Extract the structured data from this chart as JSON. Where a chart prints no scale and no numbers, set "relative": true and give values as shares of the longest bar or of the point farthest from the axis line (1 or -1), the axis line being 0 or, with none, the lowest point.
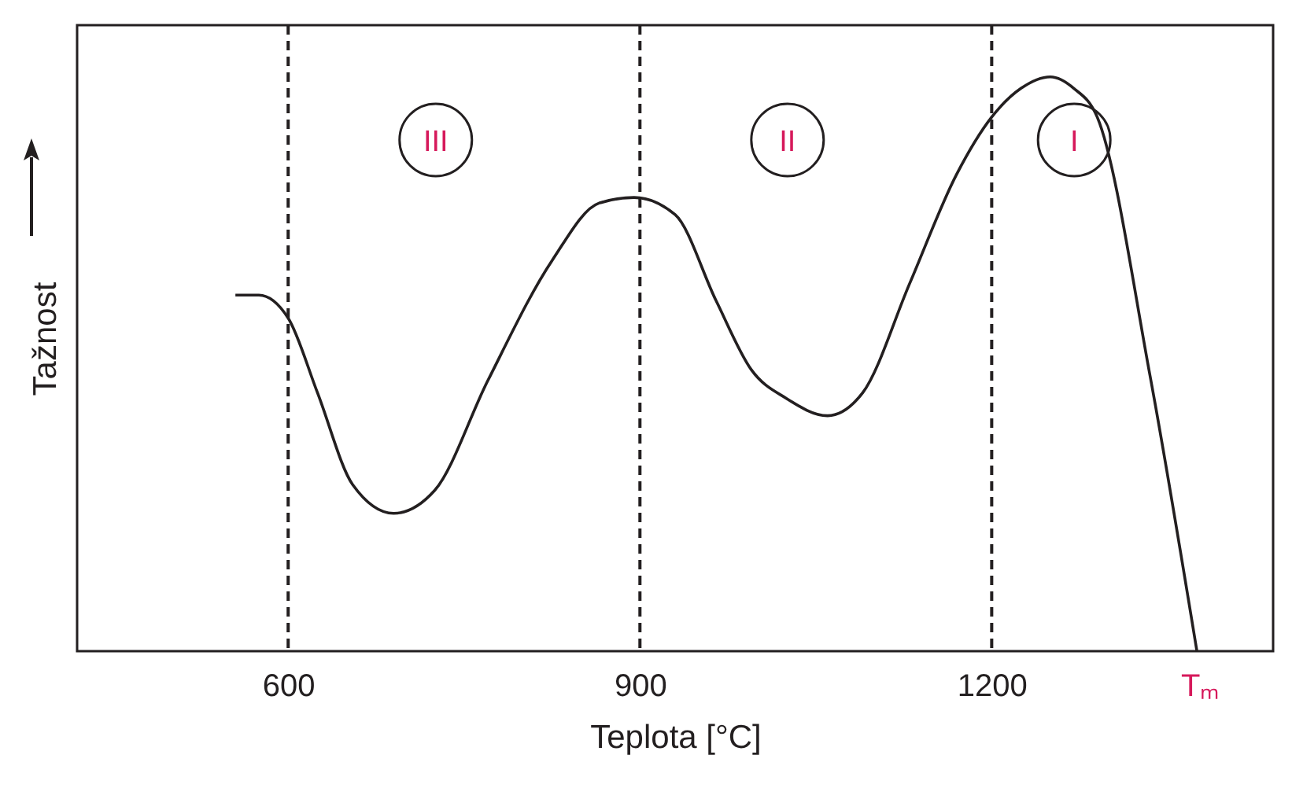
{
  "chart_data": {
    "type": "line",
    "xlabel": "Teplota [°C]",
    "ylabel": "Tažnost",
    "relative": true,
    "x": [
      555,
      575,
      600,
      625,
      655,
      690,
      725,
      770,
      825,
      865,
      895,
      930,
      965,
      995,
      1025,
      1060,
      1090,
      1130,
      1170,
      1200,
      1225,
      1250,
      1270,
      1290,
      1335,
      1375
    ],
    "series": [
      {
        "color": "#231f20",
        "values": [
          0.62,
          0.62,
          0.58,
          0.45,
          0.29,
          0.24,
          0.28,
          0.47,
          0.68,
          0.78,
          0.79,
          0.76,
          0.61,
          0.49,
          0.44,
          0.41,
          0.45,
          0.64,
          0.83,
          0.93,
          0.98,
          1,
          0.98,
          0.93,
          0.48,
          0
        ]
      }
    ],
    "xlim": [
      420,
      1440
    ],
    "xticks": [
      600,
      900,
      1200,
      {
        "value": 1377,
        "label": "Tₘ"
      }
    ],
    "ref_lines": [
      {
        "axis": "x",
        "value": 600,
        "color": "#231f20",
        "line_style": "dashed"
      },
      {
        "axis": "x",
        "value": 900,
        "color": "#231f20",
        "line_style": "dashed"
      },
      {
        "axis": "x",
        "value": 1200,
        "color": "#231f20",
        "line_style": "dashed"
      }
    ],
    "annotations": [
      "III",
      "II",
      "I"
    ],
    "grid": false,
    "marker": "none",
    "line_style": "solid"
  }
}
